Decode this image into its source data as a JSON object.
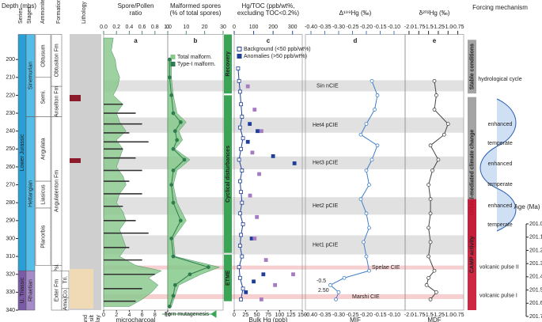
{
  "depth_axis": {
    "label": "Depth (mbs)",
    "ylim": [
      186,
      340
    ],
    "yticks": [
      200,
      210,
      220,
      230,
      240,
      250,
      260,
      270,
      280,
      290,
      300,
      310,
      320,
      330,
      340
    ]
  },
  "stratigraphy": {
    "headers": [
      "Series",
      "Stages",
      "Ammonite zones",
      "Formations",
      "Lithology"
    ],
    "series": [
      {
        "label": "Lower Jurassic",
        "depth": [
          186,
          318
        ],
        "color": "#2a9fd6"
      },
      {
        "label": "U. Triassic",
        "depth": [
          318,
          340
        ],
        "color": "#7b5aa6"
      }
    ],
    "stages": [
      {
        "label": "Sinemurian",
        "depth": [
          186,
          232
        ],
        "color": "#55bde8"
      },
      {
        "label": "Hettangian",
        "depth": [
          232,
          318
        ],
        "color": "#55bde8"
      },
      {
        "label": "Rhaetian",
        "depth": [
          318,
          340
        ],
        "color": "#a58cc8"
      }
    ],
    "zones": [
      {
        "label": "Obtusum",
        "depth": [
          186,
          210
        ]
      },
      {
        "label": "Semi.",
        "depth": [
          210,
          232
        ]
      },
      {
        "label": "Angulata",
        "depth": [
          232,
          268
        ]
      },
      {
        "label": "Liasicus",
        "depth": [
          268,
          283
        ]
      },
      {
        "label": "Planorbis",
        "depth": [
          283,
          315
        ]
      }
    ],
    "formations": [
      {
        "label": "Obtusiton Fm",
        "depth": [
          186,
          215
        ]
      },
      {
        "label": "Anselton Fm",
        "depth": [
          215,
          232
        ]
      },
      {
        "label": "Angulatenton Fm",
        "depth": [
          232,
          315
        ]
      },
      {
        "label": "Psi.",
        "depth": [
          315,
          318
        ]
      },
      {
        "label": "Exter Fm",
        "depth": [
          318,
          340
        ]
      }
    ],
    "members": [
      {
        "label": "Tri.",
        "depth": [
          318,
          328
        ]
      },
      {
        "label": "Co.",
        "depth": [
          328,
          333
        ]
      },
      {
        "label": "Ama.",
        "depth": [
          333,
          340
        ]
      }
    ],
    "grain_sizes": [
      "sand",
      "silt",
      "clay"
    ]
  },
  "intervals": [
    {
      "label": "Sin nCIE",
      "depth": [
        211.6,
        217.8
      ],
      "color": "#d9d9d9"
    },
    {
      "label": "Het4 pCIE",
      "depth": [
        232.4,
        240.9
      ],
      "color": "#d9d9d9"
    },
    {
      "label": "Het3 pCIE",
      "depth": [
        254.2,
        261.3
      ],
      "color": "#d9d9d9"
    },
    {
      "label": "Het2 pCIE",
      "depth": [
        276.9,
        286.7
      ],
      "color": "#d9d9d9"
    },
    {
      "label": "Het1 pCIE",
      "depth": [
        298.2,
        308.9
      ],
      "color": "#d9d9d9"
    },
    {
      "label": "Spelae CIE",
      "depth": [
        315.1,
        317.3
      ],
      "color": "#f4c4c4"
    },
    {
      "label": "Marshi CIE",
      "depth": [
        331.1,
        333.8
      ],
      "color": "#f4c4c4"
    }
  ],
  "phase_bars": [
    {
      "label": "Recovery",
      "depth": [
        186,
        219
      ]
    },
    {
      "label": "Cyclical disturbances",
      "depth": [
        220,
        308
      ]
    },
    {
      "label": "ETME",
      "depth": [
        309,
        335
      ]
    }
  ],
  "phase_note": "Fern mutagenesis",
  "chart_data": [
    {
      "type": "profile",
      "panel": "a",
      "title_lines": [
        "Spore/Pollen",
        "ratio"
      ],
      "xlim": [
        0,
        1
      ],
      "xticks": [
        {
          "value": 0,
          "label": "0.0"
        },
        0.2,
        0.4,
        0.6,
        0.8,
        {
          "value": 1,
          "label": "1.0"
        }
      ],
      "x2label_lines": [
        "microcharcoal",
        "(% of phytoclasts)"
      ],
      "x2lim": [
        0,
        10
      ],
      "x2ticks": [
        0,
        2,
        4,
        6,
        8,
        10
      ],
      "series": [
        {
          "type": "area",
          "color": "#8cc98f",
          "depth": [
            188,
            195,
            200,
            205,
            210,
            215,
            220,
            225,
            230,
            235,
            240,
            245,
            250,
            255,
            260,
            265,
            270,
            275,
            280,
            285,
            290,
            295,
            300,
            305,
            310,
            315,
            318,
            322,
            326,
            330,
            334,
            338
          ],
          "values": [
            0.15,
            0.12,
            0.18,
            0.2,
            0.25,
            0.22,
            0.15,
            0.3,
            0.2,
            0.25,
            0.35,
            0.2,
            0.3,
            0.25,
            0.2,
            0.3,
            0.35,
            0.25,
            0.2,
            0.3,
            0.35,
            0.25,
            0.3,
            0.35,
            0.25,
            0.5,
            0.9,
            0.7,
            0.85,
            0.75,
            0.6,
            0.4
          ]
        },
        {
          "type": "bars",
          "axis": "x2",
          "color": "#333333",
          "depth": [
            225,
            230,
            236,
            241,
            246,
            250,
            255,
            262,
            268,
            275,
            282,
            290,
            297,
            305,
            312,
            320,
            328,
            335
          ],
          "values": [
            3,
            5,
            6,
            4,
            7,
            3,
            5,
            6,
            4,
            6,
            3,
            5,
            7,
            4,
            6,
            8,
            6,
            5
          ]
        }
      ]
    },
    {
      "type": "profile",
      "panel": "b",
      "title_lines": [
        "Malformed spores",
        "(% of total spores)"
      ],
      "xlim": [
        0,
        30
      ],
      "xticks": [
        0,
        10,
        20,
        30
      ],
      "series": [
        {
          "type": "area",
          "name": "Total malform.",
          "color": "#86c98a",
          "depth": [
            200,
            210,
            220,
            230,
            235,
            240,
            245,
            250,
            256,
            262,
            270,
            280,
            290,
            300,
            310,
            316,
            320,
            326,
            332,
            338
          ],
          "values": [
            2,
            2,
            3,
            5,
            10,
            6,
            8,
            4,
            12,
            5,
            3,
            5,
            10,
            3,
            4,
            28,
            18,
            6,
            4,
            2
          ]
        },
        {
          "type": "line",
          "name": "Type-I malform.",
          "color": "#2e7d4f",
          "depth": [
            200,
            210,
            220,
            230,
            235,
            240,
            245,
            250,
            256,
            262,
            270,
            280,
            290,
            300,
            310,
            316,
            320,
            326,
            332,
            338
          ],
          "values": [
            1,
            1,
            2,
            3,
            7,
            4,
            5,
            3,
            9,
            3,
            2,
            3,
            7,
            2,
            3,
            22,
            12,
            4,
            3,
            1
          ]
        }
      ]
    },
    {
      "type": "profile",
      "panel": "c",
      "title_lines": [
        "Hg/TOC (ppb/wt%,",
        "excluding TOC<0.2%)"
      ],
      "xlim": [
        0,
        350
      ],
      "xticks": [
        0,
        100,
        200,
        300
      ],
      "x2label_lines": [
        "Bulk Hg (ppb)"
      ],
      "x2lim": [
        0,
        150
      ],
      "x2ticks": [
        0,
        25,
        50,
        75,
        100,
        125,
        150
      ],
      "series": [
        {
          "type": "line",
          "marker": "open-square",
          "name": "Background (<50 ppb/wt%)",
          "color": "#1f3f99",
          "depth": [
            205,
            212,
            218,
            225,
            232,
            238,
            244,
            250,
            256,
            262,
            268,
            274,
            280,
            286,
            292,
            298,
            304,
            310,
            316,
            322,
            328,
            334
          ],
          "values": [
            20,
            25,
            30,
            35,
            40,
            30,
            45,
            35,
            25,
            40,
            30,
            35,
            40,
            30,
            45,
            35,
            30,
            40,
            25,
            30,
            45,
            35
          ]
        },
        {
          "type": "points",
          "marker": "square",
          "name": "Anomalies (>50 ppb/wt%)",
          "color": "#1f3f99",
          "depth": [
            236,
            240,
            246,
            254,
            258,
            300,
            320,
            324,
            330
          ],
          "values": [
            80,
            120,
            70,
            200,
            310,
            90,
            150,
            100,
            60
          ]
        },
        {
          "type": "points",
          "marker": "square",
          "axis": "x2",
          "color": "#a67bc2",
          "depth": [
            215,
            228,
            240,
            252,
            264,
            276,
            288,
            300,
            312,
            320,
            326,
            334
          ],
          "values": [
            30,
            45,
            60,
            40,
            55,
            35,
            50,
            45,
            70,
            130,
            90,
            60
          ]
        }
      ]
    },
    {
      "type": "profile",
      "panel": "d",
      "title_lines": [
        "Δ¹⁹⁹Hg (‰)"
      ],
      "xlim": [
        -0.42,
        -0.06
      ],
      "xticks": [
        {
          "value": -0.4,
          "label": "-0.40"
        },
        -0.35,
        {
          "value": -0.3,
          "label": "-0.30"
        },
        -0.25,
        {
          "value": -0.2,
          "label": "-0.20"
        },
        -0.15,
        {
          "value": -0.1,
          "label": "-0.10"
        }
      ],
      "x2label_lines": [
        "MIF"
      ],
      "annotations": [
        "-0.5",
        "2.50"
      ],
      "series": [
        {
          "type": "line",
          "marker": "open-circle",
          "color": "#3f7fc8",
          "depth": [
            212,
            220,
            228,
            236,
            242,
            248,
            256,
            262,
            270,
            278,
            286,
            294,
            302,
            310,
            318,
            322,
            326,
            330,
            334
          ],
          "values": [
            -0.18,
            -0.16,
            -0.17,
            -0.2,
            -0.22,
            -0.16,
            -0.18,
            -0.2,
            -0.19,
            -0.22,
            -0.2,
            -0.19,
            -0.21,
            -0.2,
            -0.19,
            -0.28,
            -0.33,
            -0.3,
            -0.31
          ]
        }
      ]
    },
    {
      "type": "profile",
      "panel": "e",
      "title_lines": [
        "δ²⁰²Hg (‰)"
      ],
      "xlim": [
        -2.1,
        -0.6
      ],
      "xticks": [
        {
          "value": -2,
          "label": "-2.0"
        },
        -1.75,
        -1.5,
        -1.25,
        {
          "value": -1,
          "label": "-1.0"
        },
        -0.75
      ],
      "x2label_lines": [
        "MDF"
      ],
      "series": [
        {
          "type": "line",
          "marker": "open-circle",
          "color": "#444444",
          "depth": [
            212,
            220,
            228,
            236,
            242,
            248,
            256,
            262,
            270,
            278,
            286,
            294,
            302,
            310,
            318,
            322,
            326,
            330,
            334
          ],
          "values": [
            -1.35,
            -1.3,
            -1.35,
            -1.0,
            -1.1,
            -1.45,
            -1.25,
            -1.4,
            -1.5,
            -1.45,
            -1.45,
            -1.5,
            -1.45,
            -1.5,
            -1.35,
            -1.5,
            -1.55,
            -1.3,
            -1.45
          ]
        }
      ]
    }
  ],
  "forcing": {
    "title": "Forcing mechanism",
    "bars": [
      {
        "label": "Stable conditions",
        "depth": [
          189,
          219
        ],
        "color": "#9a9a9a"
      },
      {
        "label": "Orbital-mediated climate change",
        "depth": [
          221,
          305
        ],
        "color": "#9a9a9a"
      },
      {
        "label": "CAMP activity",
        "depth": [
          278,
          340
        ],
        "color": "#c8102e"
      }
    ],
    "notes": [
      "hydrological cycle",
      "enhanced",
      "temperate",
      "enhanced",
      "temperate",
      "enhanced",
      "temperate"
    ],
    "pulses": [
      "volcanic pulse II",
      "volcanic pulse I"
    ]
  },
  "age_axis": {
    "label": "Age (Ma)",
    "ylim": [
      201.0,
      201.7
    ],
    "yticks": [
      {
        "value": 201.0,
        "label": "201.0"
      },
      201.1,
      201.2,
      201.3,
      201.4,
      201.5,
      201.6,
      201.7
    ]
  }
}
